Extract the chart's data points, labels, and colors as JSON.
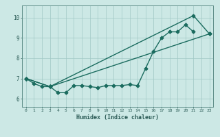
{
  "xlabel": "Humidex (Indice chaleur)",
  "xlim": [
    -0.5,
    23.5
  ],
  "ylim": [
    5.6,
    10.6
  ],
  "xticks": [
    0,
    1,
    2,
    3,
    4,
    5,
    6,
    7,
    8,
    9,
    10,
    11,
    12,
    13,
    14,
    15,
    16,
    17,
    18,
    19,
    20,
    21,
    22,
    23
  ],
  "yticks": [
    6,
    7,
    8,
    9,
    10
  ],
  "bg_color": "#cce8e5",
  "line_color": "#1a6b5e",
  "grid_color": "#a0c8c4",
  "line1_x": [
    0,
    1,
    2,
    3,
    4,
    5,
    6,
    7,
    8,
    9,
    10,
    11,
    12,
    13,
    14,
    15,
    16,
    17,
    18,
    19,
    20,
    21
  ],
  "line1_y": [
    7.0,
    6.75,
    6.6,
    6.6,
    6.3,
    6.3,
    6.65,
    6.65,
    6.6,
    6.55,
    6.65,
    6.65,
    6.65,
    6.7,
    6.65,
    7.5,
    8.35,
    9.0,
    9.3,
    9.3,
    9.65,
    9.3
  ],
  "line2_x": [
    0,
    3,
    21,
    23
  ],
  "line2_y": [
    7.0,
    6.6,
    10.1,
    9.2
  ],
  "line3_x": [
    0,
    3,
    23
  ],
  "line3_y": [
    7.0,
    6.6,
    9.2
  ],
  "marker_size": 2.5,
  "line_width": 1.0
}
